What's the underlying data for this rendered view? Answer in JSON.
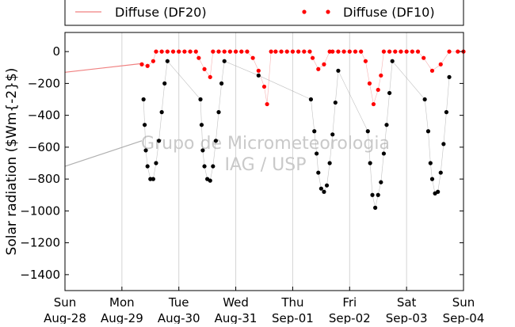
{
  "chart_data": {
    "type": "scatter",
    "title": "",
    "xlabel": "",
    "ylabel": "Solar radiation ($Wm{-2}$)",
    "ylim": [
      -1500,
      120
    ],
    "xlim": [
      0,
      7
    ],
    "yticks": [
      0,
      -200,
      -400,
      -600,
      -800,
      -1000,
      -1200,
      -1400
    ],
    "x_ticks": [
      {
        "day": "Sun",
        "date": "Aug-28"
      },
      {
        "day": "Mon",
        "date": "Aug-29"
      },
      {
        "day": "Tue",
        "date": "Aug-30"
      },
      {
        "day": "Wed",
        "date": "Aug-31"
      },
      {
        "day": "Thu",
        "date": "Sep-01"
      },
      {
        "day": "Fri",
        "date": "Sep-02"
      },
      {
        "day": "Sat",
        "date": "Sep-03"
      },
      {
        "day": "Sun",
        "date": "Sep-04"
      }
    ],
    "grid": "vertical",
    "legend": "top (outside)",
    "watermark": [
      "Grupo de Micrometeorologia",
      "IAG / USP"
    ],
    "colors": {
      "series_DF20": "#f08080",
      "series_DF10": "#ff0000",
      "global": "#000000"
    },
    "series": [
      {
        "name": "Diffuse (DF20)",
        "style": "line",
        "points": [
          [
            0.0,
            -130
          ],
          [
            1.35,
            -75
          ]
        ]
      },
      {
        "name": "Diffuse (DF10)",
        "style": "dots",
        "points": [
          [
            1.35,
            -80
          ],
          [
            1.45,
            -90
          ],
          [
            1.55,
            -60
          ],
          [
            1.6,
            0
          ],
          [
            1.7,
            0
          ],
          [
            1.8,
            0
          ],
          [
            1.9,
            0
          ],
          [
            2.0,
            0
          ],
          [
            2.1,
            0
          ],
          [
            2.2,
            0
          ],
          [
            2.3,
            0
          ],
          [
            2.35,
            -40
          ],
          [
            2.45,
            -110
          ],
          [
            2.55,
            -160
          ],
          [
            2.6,
            0
          ],
          [
            2.7,
            0
          ],
          [
            2.8,
            0
          ],
          [
            2.9,
            0
          ],
          [
            3.0,
            0
          ],
          [
            3.1,
            0
          ],
          [
            3.2,
            0
          ],
          [
            3.3,
            -40
          ],
          [
            3.4,
            -120
          ],
          [
            3.5,
            -220
          ],
          [
            3.55,
            -330
          ],
          [
            3.62,
            0
          ],
          [
            3.7,
            0
          ],
          [
            3.8,
            0
          ],
          [
            3.9,
            0
          ],
          [
            4.0,
            0
          ],
          [
            4.1,
            0
          ],
          [
            4.2,
            0
          ],
          [
            4.3,
            0
          ],
          [
            4.35,
            -40
          ],
          [
            4.45,
            -110
          ],
          [
            4.55,
            -80
          ],
          [
            4.65,
            0
          ],
          [
            4.7,
            0
          ],
          [
            4.8,
            0
          ],
          [
            4.9,
            0
          ],
          [
            5.0,
            0
          ],
          [
            5.1,
            0
          ],
          [
            5.2,
            0
          ],
          [
            5.28,
            -60
          ],
          [
            5.35,
            -200
          ],
          [
            5.42,
            -330
          ],
          [
            5.5,
            -240
          ],
          [
            5.55,
            -150
          ],
          [
            5.6,
            0
          ],
          [
            5.7,
            0
          ],
          [
            5.8,
            0
          ],
          [
            5.9,
            0
          ],
          [
            6.0,
            0
          ],
          [
            6.1,
            0
          ],
          [
            6.2,
            0
          ],
          [
            6.3,
            -40
          ],
          [
            6.45,
            -120
          ],
          [
            6.6,
            -80
          ],
          [
            6.75,
            0
          ],
          [
            6.9,
            0
          ],
          [
            7.0,
            0
          ]
        ]
      },
      {
        "name": "",
        "style": "dots",
        "points": [
          [
            1.38,
            -300
          ],
          [
            1.4,
            -460
          ],
          [
            1.42,
            -620
          ],
          [
            1.45,
            -720
          ],
          [
            1.5,
            -800
          ],
          [
            1.55,
            -800
          ],
          [
            1.6,
            -700
          ],
          [
            1.65,
            -560
          ],
          [
            1.7,
            -380
          ],
          [
            1.75,
            -200
          ],
          [
            1.8,
            -60
          ],
          [
            2.38,
            -300
          ],
          [
            2.4,
            -460
          ],
          [
            2.42,
            -620
          ],
          [
            2.45,
            -720
          ],
          [
            2.5,
            -800
          ],
          [
            2.55,
            -810
          ],
          [
            2.6,
            -720
          ],
          [
            2.65,
            -560
          ],
          [
            2.7,
            -380
          ],
          [
            2.75,
            -200
          ],
          [
            2.8,
            -60
          ],
          [
            3.4,
            -150
          ],
          [
            4.32,
            -300
          ],
          [
            4.38,
            -500
          ],
          [
            4.42,
            -640
          ],
          [
            4.45,
            -760
          ],
          [
            4.5,
            -860
          ],
          [
            4.55,
            -880
          ],
          [
            4.6,
            -840
          ],
          [
            4.65,
            -700
          ],
          [
            4.7,
            -520
          ],
          [
            4.75,
            -320
          ],
          [
            4.8,
            -120
          ],
          [
            5.32,
            -500
          ],
          [
            5.36,
            -700
          ],
          [
            5.4,
            -900
          ],
          [
            5.45,
            -980
          ],
          [
            5.5,
            -900
          ],
          [
            5.55,
            -820
          ],
          [
            5.6,
            -640
          ],
          [
            5.65,
            -460
          ],
          [
            5.7,
            -260
          ],
          [
            5.75,
            -60
          ],
          [
            6.32,
            -300
          ],
          [
            6.38,
            -500
          ],
          [
            6.42,
            -700
          ],
          [
            6.45,
            -800
          ],
          [
            6.5,
            -890
          ],
          [
            6.55,
            -880
          ],
          [
            6.6,
            -760
          ],
          [
            6.65,
            -580
          ],
          [
            6.7,
            -380
          ],
          [
            6.75,
            -160
          ]
        ]
      }
    ],
    "extra_lines": [
      {
        "color": "#b0b0b0",
        "points": [
          [
            0.0,
            -720
          ],
          [
            1.35,
            -560
          ]
        ]
      }
    ]
  }
}
